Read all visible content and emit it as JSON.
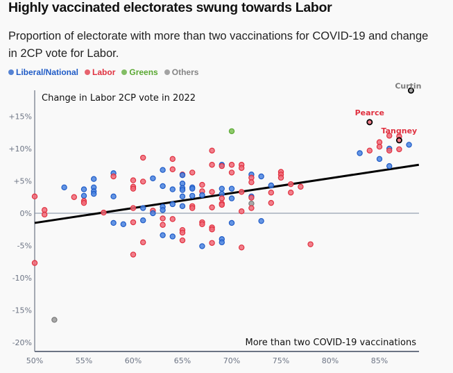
{
  "title": "Highly vaccinated electorates swung towards Labor",
  "subtitle": "Proportion of electorate with more than two vaccinations for COVID-19 and change in 2CP vote for Labor.",
  "legend": [
    {
      "label": "Liberal/National",
      "color": "#1f5bc6"
    },
    {
      "label": "Labor",
      "color": "#e0303f"
    },
    {
      "label": "Greens",
      "color": "#5aa832"
    },
    {
      "label": "Others",
      "color": "#858585"
    }
  ],
  "chart_data": {
    "type": "scatter",
    "title": "Highly vaccinated electorates swung towards Labor",
    "xlabel": "More than two COVID-19 vaccinations",
    "ylabel": "Change in Labor 2CP vote in 2022",
    "xlim": [
      50,
      89
    ],
    "ylim": [
      -21,
      18
    ],
    "x_ticks": [
      "50%",
      "55%",
      "60%",
      "65%",
      "70%",
      "75%",
      "80%",
      "85%"
    ],
    "x_tick_values": [
      50,
      55,
      60,
      65,
      70,
      75,
      80,
      85
    ],
    "y_ticks": [
      "+15%",
      "+10%",
      "+5%",
      "0%",
      "-5%",
      "-10%",
      "-15%",
      "-20%"
    ],
    "y_tick_values": [
      15,
      10,
      5,
      0,
      -5,
      -10,
      -15,
      -20
    ],
    "trendline": {
      "x": [
        50,
        89
      ],
      "y": [
        -1.5,
        7.5
      ]
    },
    "parties": {
      "lnp": {
        "name": "Liberal/National",
        "fill": "#4a84e0",
        "stroke": "#1f5bc6"
      },
      "alp": {
        "name": "Labor",
        "fill": "#f06a78",
        "stroke": "#e0303f"
      },
      "grn": {
        "name": "Greens",
        "fill": "#7cc254",
        "stroke": "#5aa832"
      },
      "oth": {
        "name": "Others",
        "fill": "#9a9a9a",
        "stroke": "#7a7a7a"
      }
    },
    "points": [
      {
        "x": 50,
        "y": 2.6,
        "p": "alp"
      },
      {
        "x": 50,
        "y": -7.7,
        "p": "alp"
      },
      {
        "x": 51,
        "y": 0.5,
        "p": "alp"
      },
      {
        "x": 51,
        "y": -0.2,
        "p": "alp"
      },
      {
        "x": 52,
        "y": -16.5,
        "p": "oth"
      },
      {
        "x": 53,
        "y": 4.0,
        "p": "lnp"
      },
      {
        "x": 54,
        "y": 2.5,
        "p": "alp"
      },
      {
        "x": 55,
        "y": 3.7,
        "p": "lnp"
      },
      {
        "x": 55,
        "y": 2.7,
        "p": "lnp"
      },
      {
        "x": 55,
        "y": 1.9,
        "p": "alp"
      },
      {
        "x": 55,
        "y": 1.6,
        "p": "alp"
      },
      {
        "x": 56,
        "y": 5.3,
        "p": "lnp"
      },
      {
        "x": 56,
        "y": 4.0,
        "p": "lnp"
      },
      {
        "x": 56,
        "y": 3.4,
        "p": "lnp"
      },
      {
        "x": 56,
        "y": 3.0,
        "p": "lnp"
      },
      {
        "x": 57,
        "y": 0.1,
        "p": "alp"
      },
      {
        "x": 58,
        "y": 6.2,
        "p": "lnp"
      },
      {
        "x": 58,
        "y": 5.7,
        "p": "alp"
      },
      {
        "x": 58,
        "y": 2.6,
        "p": "lnp"
      },
      {
        "x": 58,
        "y": -1.5,
        "p": "lnp"
      },
      {
        "x": 59,
        "y": -1.7,
        "p": "lnp"
      },
      {
        "x": 60,
        "y": 5.1,
        "p": "alp"
      },
      {
        "x": 60,
        "y": 4.1,
        "p": "alp"
      },
      {
        "x": 60,
        "y": 3.8,
        "p": "alp"
      },
      {
        "x": 60,
        "y": 0.8,
        "p": "alp"
      },
      {
        "x": 60,
        "y": -1.4,
        "p": "alp"
      },
      {
        "x": 60,
        "y": -6.4,
        "p": "alp"
      },
      {
        "x": 61,
        "y": 8.6,
        "p": "alp"
      },
      {
        "x": 61,
        "y": 4.9,
        "p": "alp"
      },
      {
        "x": 61,
        "y": 0.8,
        "p": "lnp"
      },
      {
        "x": 61,
        "y": -1.1,
        "p": "lnp"
      },
      {
        "x": 61,
        "y": -4.5,
        "p": "alp"
      },
      {
        "x": 62,
        "y": 5.4,
        "p": "lnp"
      },
      {
        "x": 62,
        "y": 0.4,
        "p": "alp"
      },
      {
        "x": 62,
        "y": 0.0,
        "p": "lnp"
      },
      {
        "x": 63,
        "y": 6.7,
        "p": "lnp"
      },
      {
        "x": 63,
        "y": 4.2,
        "p": "lnp"
      },
      {
        "x": 63,
        "y": 1.0,
        "p": "lnp"
      },
      {
        "x": 63,
        "y": 0.5,
        "p": "lnp"
      },
      {
        "x": 63,
        "y": -0.8,
        "p": "alp"
      },
      {
        "x": 63,
        "y": -1.8,
        "p": "alp"
      },
      {
        "x": 63,
        "y": -3.4,
        "p": "lnp"
      },
      {
        "x": 64,
        "y": 8.4,
        "p": "alp"
      },
      {
        "x": 64,
        "y": 6.8,
        "p": "alp"
      },
      {
        "x": 64,
        "y": 3.7,
        "p": "lnp"
      },
      {
        "x": 64,
        "y": 1.4,
        "p": "lnp"
      },
      {
        "x": 64,
        "y": -0.9,
        "p": "alp"
      },
      {
        "x": 64,
        "y": -3.6,
        "p": "lnp"
      },
      {
        "x": 65,
        "y": 6.0,
        "p": "alp"
      },
      {
        "x": 65,
        "y": 5.9,
        "p": "lnp"
      },
      {
        "x": 65,
        "y": 4.6,
        "p": "lnp"
      },
      {
        "x": 65,
        "y": 3.9,
        "p": "lnp"
      },
      {
        "x": 65,
        "y": 3.6,
        "p": "lnp"
      },
      {
        "x": 65,
        "y": 2.6,
        "p": "lnp"
      },
      {
        "x": 65,
        "y": 1.1,
        "p": "lnp"
      },
      {
        "x": 65,
        "y": -2.6,
        "p": "alp"
      },
      {
        "x": 65,
        "y": -3.0,
        "p": "alp"
      },
      {
        "x": 65,
        "y": -4.2,
        "p": "alp"
      },
      {
        "x": 66,
        "y": 6.3,
        "p": "alp"
      },
      {
        "x": 66,
        "y": 4.0,
        "p": "lnp"
      },
      {
        "x": 66,
        "y": 3.8,
        "p": "lnp"
      },
      {
        "x": 66,
        "y": 2.7,
        "p": "lnp"
      },
      {
        "x": 66,
        "y": 1.1,
        "p": "alp"
      },
      {
        "x": 66,
        "y": 0.8,
        "p": "alp"
      },
      {
        "x": 67,
        "y": 4.4,
        "p": "alp"
      },
      {
        "x": 67,
        "y": 3.4,
        "p": "alp"
      },
      {
        "x": 67,
        "y": 2.8,
        "p": "lnp"
      },
      {
        "x": 67,
        "y": -1.4,
        "p": "alp"
      },
      {
        "x": 67,
        "y": -1.7,
        "p": "alp"
      },
      {
        "x": 67,
        "y": -5.1,
        "p": "lnp"
      },
      {
        "x": 68,
        "y": 9.7,
        "p": "alp"
      },
      {
        "x": 68,
        "y": 7.5,
        "p": "alp"
      },
      {
        "x": 68,
        "y": 3.3,
        "p": "alp"
      },
      {
        "x": 68,
        "y": 0.9,
        "p": "alp"
      },
      {
        "x": 68,
        "y": -2.2,
        "p": "alp"
      },
      {
        "x": 68,
        "y": -2.5,
        "p": "alp"
      },
      {
        "x": 68,
        "y": -4.6,
        "p": "alp"
      },
      {
        "x": 69,
        "y": 7.5,
        "p": "lnp"
      },
      {
        "x": 69,
        "y": 7.3,
        "p": "alp"
      },
      {
        "x": 69,
        "y": 3.8,
        "p": "lnp"
      },
      {
        "x": 69,
        "y": 3.0,
        "p": "lnp"
      },
      {
        "x": 69,
        "y": 2.3,
        "p": "alp"
      },
      {
        "x": 69,
        "y": 1.5,
        "p": "alp"
      },
      {
        "x": 69,
        "y": 1.3,
        "p": "alp"
      },
      {
        "x": 69,
        "y": -4.0,
        "p": "lnp"
      },
      {
        "x": 69,
        "y": -4.5,
        "p": "lnp"
      },
      {
        "x": 70,
        "y": 12.7,
        "p": "grn"
      },
      {
        "x": 70,
        "y": 7.5,
        "p": "alp"
      },
      {
        "x": 70,
        "y": 6.3,
        "p": "alp"
      },
      {
        "x": 70,
        "y": 3.8,
        "p": "lnp"
      },
      {
        "x": 70,
        "y": 2.3,
        "p": "lnp"
      },
      {
        "x": 70,
        "y": -1.5,
        "p": "lnp"
      },
      {
        "x": 71,
        "y": 7.5,
        "p": "alp"
      },
      {
        "x": 71,
        "y": 7.0,
        "p": "alp"
      },
      {
        "x": 71,
        "y": 3.3,
        "p": "alp"
      },
      {
        "x": 71,
        "y": 0.3,
        "p": "alp"
      },
      {
        "x": 71,
        "y": -5.3,
        "p": "alp"
      },
      {
        "x": 72,
        "y": 6.0,
        "p": "lnp"
      },
      {
        "x": 72,
        "y": 5.5,
        "p": "alp"
      },
      {
        "x": 72,
        "y": 4.8,
        "p": "alp"
      },
      {
        "x": 72,
        "y": 2.6,
        "p": "lnp"
      },
      {
        "x": 72,
        "y": 2.4,
        "p": "alp"
      },
      {
        "x": 72,
        "y": 1.5,
        "p": "oth"
      },
      {
        "x": 72,
        "y": 0.8,
        "p": "alp"
      },
      {
        "x": 73,
        "y": 5.7,
        "p": "lnp"
      },
      {
        "x": 73,
        "y": -1.2,
        "p": "lnp"
      },
      {
        "x": 74,
        "y": 4.3,
        "p": "lnp"
      },
      {
        "x": 74,
        "y": 3.2,
        "p": "alp"
      },
      {
        "x": 74,
        "y": 1.6,
        "p": "alp"
      },
      {
        "x": 75,
        "y": 6.4,
        "p": "alp"
      },
      {
        "x": 75,
        "y": 6.0,
        "p": "alp"
      },
      {
        "x": 75,
        "y": 5.5,
        "p": "alp"
      },
      {
        "x": 76,
        "y": 4.5,
        "p": "alp"
      },
      {
        "x": 76,
        "y": 3.2,
        "p": "alp"
      },
      {
        "x": 77,
        "y": 4.1,
        "p": "alp"
      },
      {
        "x": 78,
        "y": -4.8,
        "p": "alp"
      },
      {
        "x": 83,
        "y": 9.3,
        "p": "lnp"
      },
      {
        "x": 84,
        "y": 9.7,
        "p": "alp"
      },
      {
        "x": 84,
        "y": 14.1,
        "p": "alp",
        "label": "Pearce",
        "highlight": true
      },
      {
        "x": 85,
        "y": 11.0,
        "p": "alp"
      },
      {
        "x": 85,
        "y": 10.3,
        "p": "alp"
      },
      {
        "x": 85,
        "y": 8.4,
        "p": "lnp"
      },
      {
        "x": 86,
        "y": 12.0,
        "p": "alp"
      },
      {
        "x": 86,
        "y": 10.0,
        "p": "lnp"
      },
      {
        "x": 86,
        "y": 9.7,
        "p": "alp"
      },
      {
        "x": 86,
        "y": 7.3,
        "p": "lnp"
      },
      {
        "x": 87,
        "y": 11.9,
        "p": "alp"
      },
      {
        "x": 87,
        "y": 11.3,
        "p": "alp",
        "label": "Tangney",
        "highlight": true
      },
      {
        "x": 87,
        "y": 9.9,
        "p": "alp"
      },
      {
        "x": 88,
        "y": 10.6,
        "p": "lnp"
      },
      {
        "x": 88.2,
        "y": 19.0,
        "p": "oth",
        "label": "Curtin",
        "highlight": true
      }
    ]
  }
}
